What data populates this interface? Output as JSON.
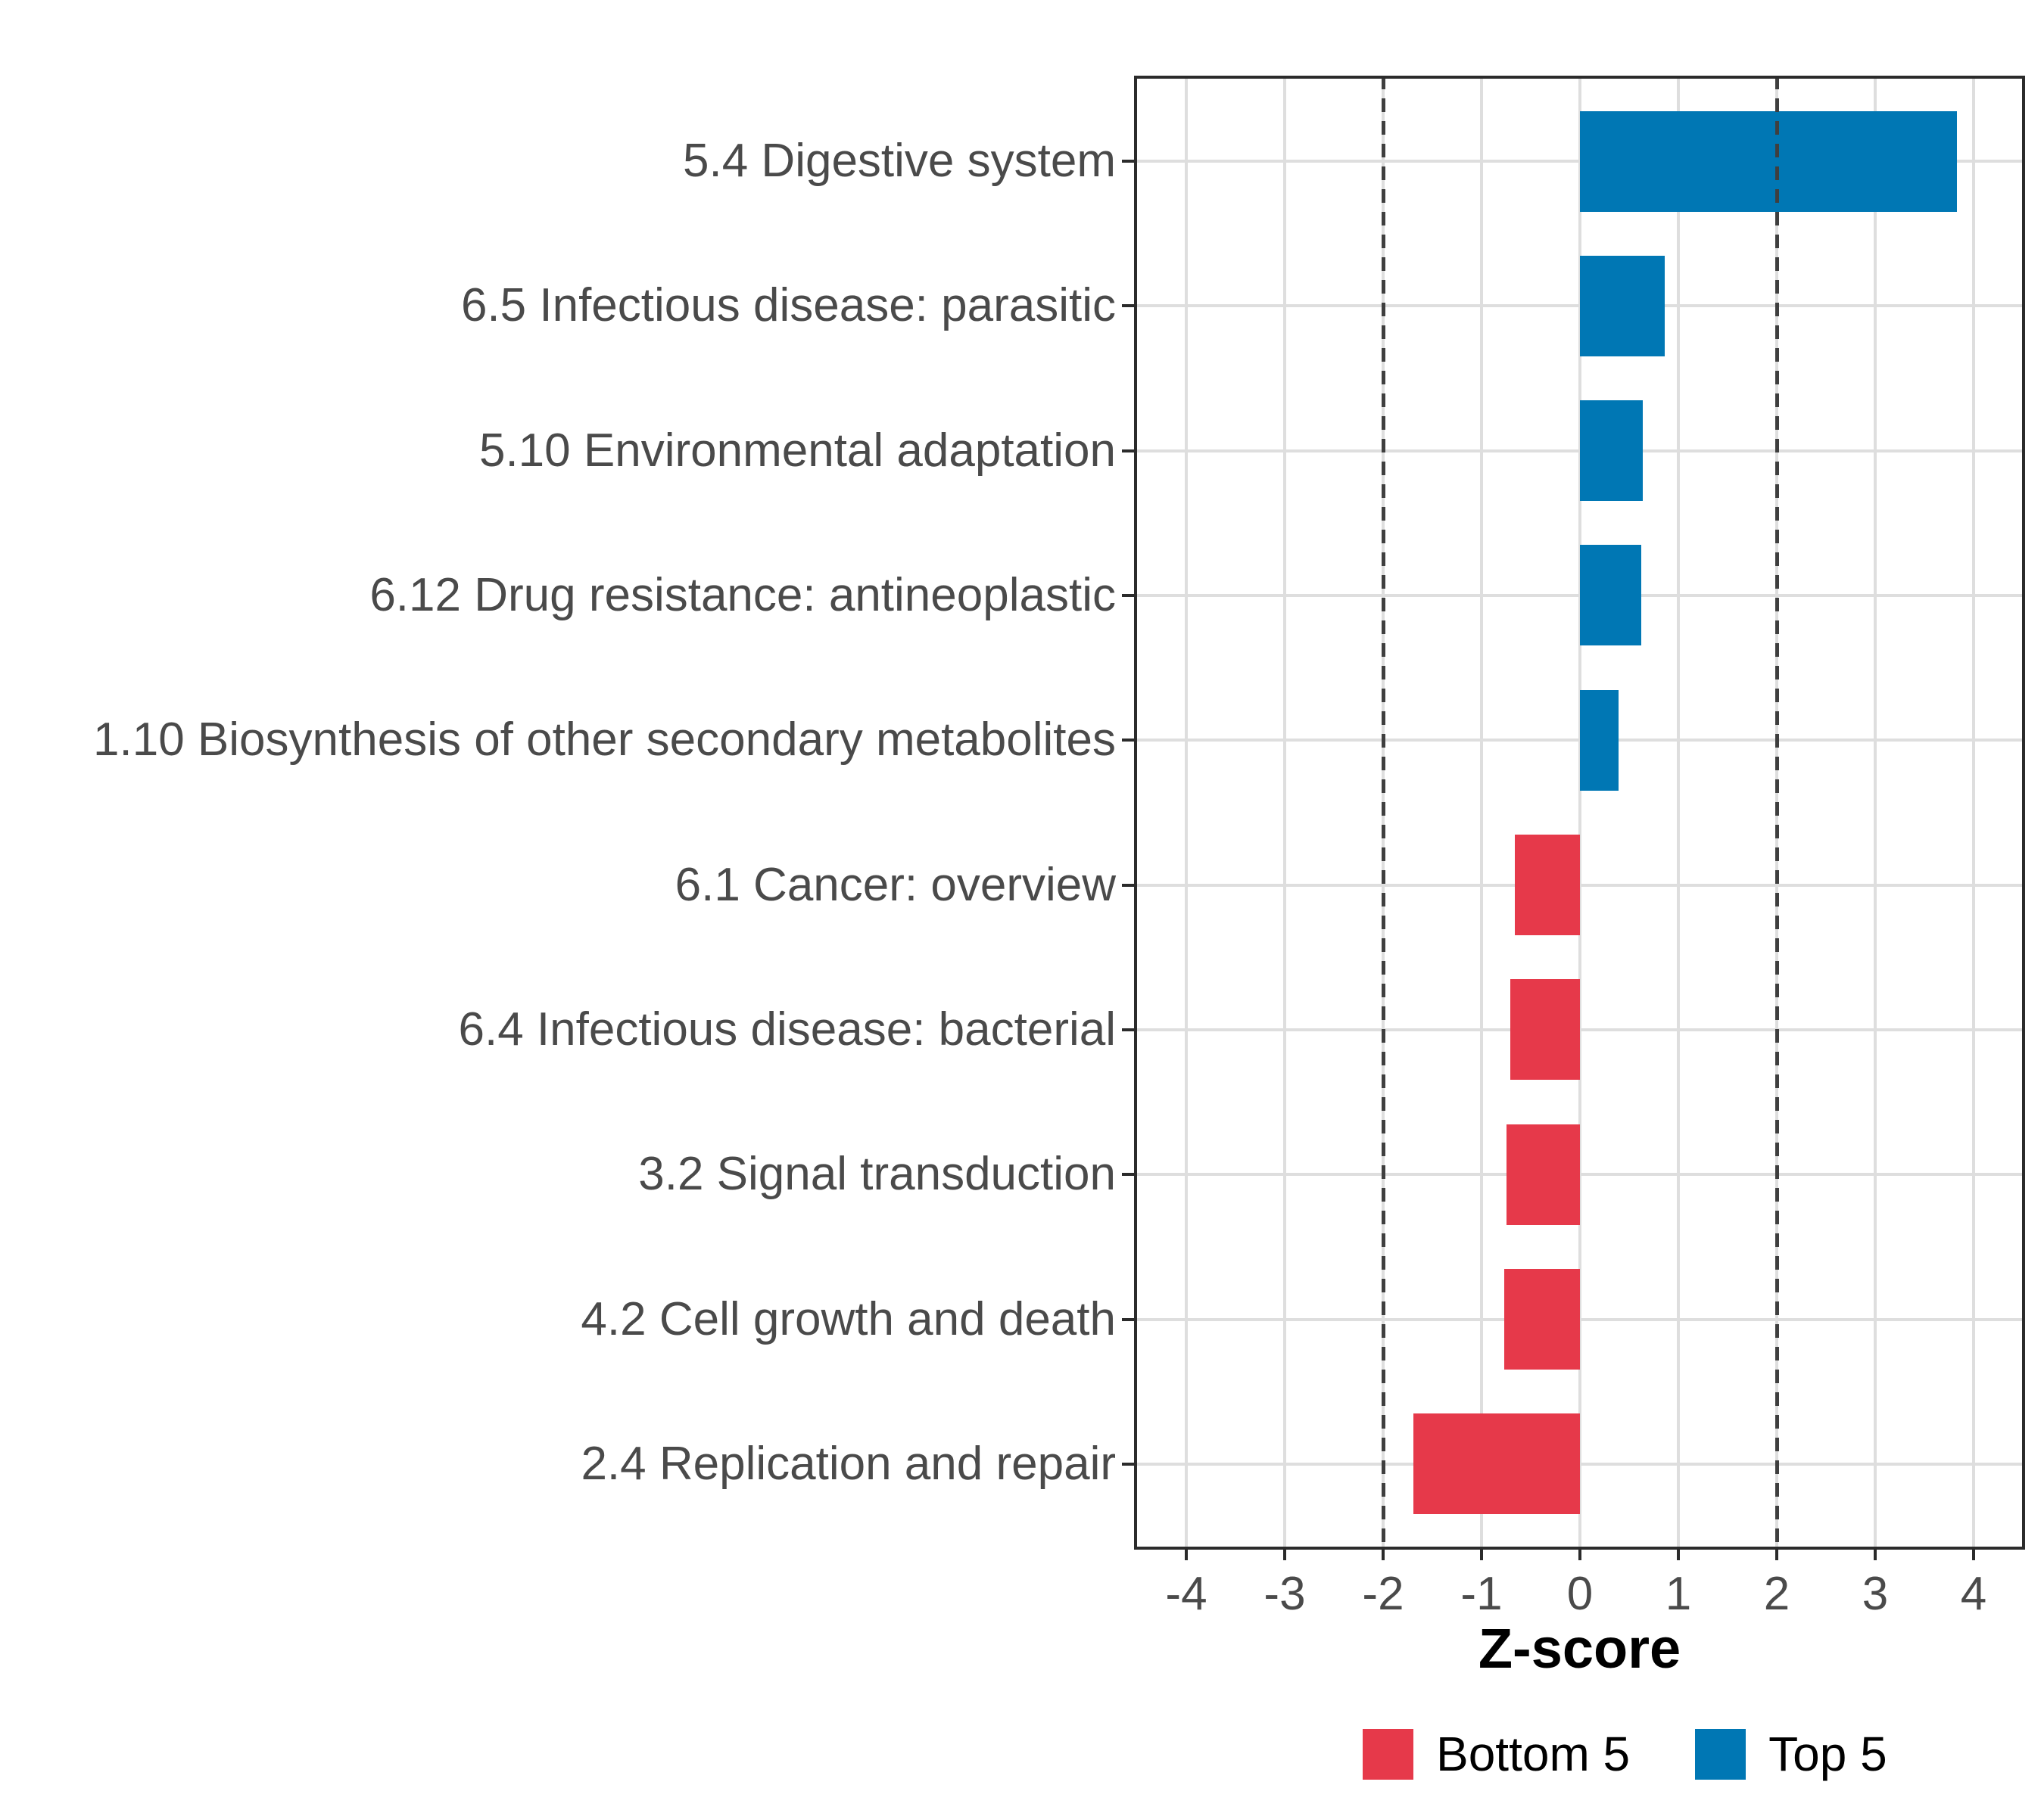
{
  "chart_data": {
    "type": "bar",
    "orientation": "horizontal",
    "xlabel": "Z-score",
    "categories": [
      "5.4 Digestive system",
      "6.5 Infectious disease: parasitic",
      "5.10 Environmental adaptation",
      "6.12 Drug resistance: antineoplastic",
      "1.10 Biosynthesis of other secondary metabolites",
      "6.1 Cancer: overview",
      "6.4 Infectious disease: bacterial",
      "3.2 Signal transduction",
      "4.2 Cell growth and death",
      "2.4 Replication and repair"
    ],
    "values": [
      3.83,
      0.86,
      0.64,
      0.62,
      0.39,
      -0.66,
      -0.71,
      -0.75,
      -0.77,
      -1.69
    ],
    "groups": [
      "Top 5",
      "Top 5",
      "Top 5",
      "Top 5",
      "Top 5",
      "Bottom 5",
      "Bottom 5",
      "Bottom 5",
      "Bottom 5",
      "Bottom 5"
    ],
    "x_ticks": [
      "-4",
      "-3",
      "-2",
      "-1",
      "0",
      "1",
      "2",
      "3",
      "4"
    ],
    "x_tick_values": [
      -4,
      -3,
      -2,
      -1,
      0,
      1,
      2,
      3,
      4
    ],
    "xlim": [
      -4.53,
      4.52
    ],
    "reference_lines": [
      -2,
      2
    ],
    "grid": true,
    "legend_position": "bottom",
    "legend": [
      {
        "label": "Bottom 5",
        "color": "#E6394A"
      },
      {
        "label": "Top 5",
        "color": "#0077B4"
      }
    ]
  },
  "colors": {
    "top5": "#0077B4",
    "bottom5": "#E6394A",
    "grid": "#DEDEDE",
    "border": "#2B2B2B",
    "axis_text": "#4A4A4A",
    "dashed_line": "#3F3F3F",
    "background": "#FFFFFF"
  }
}
